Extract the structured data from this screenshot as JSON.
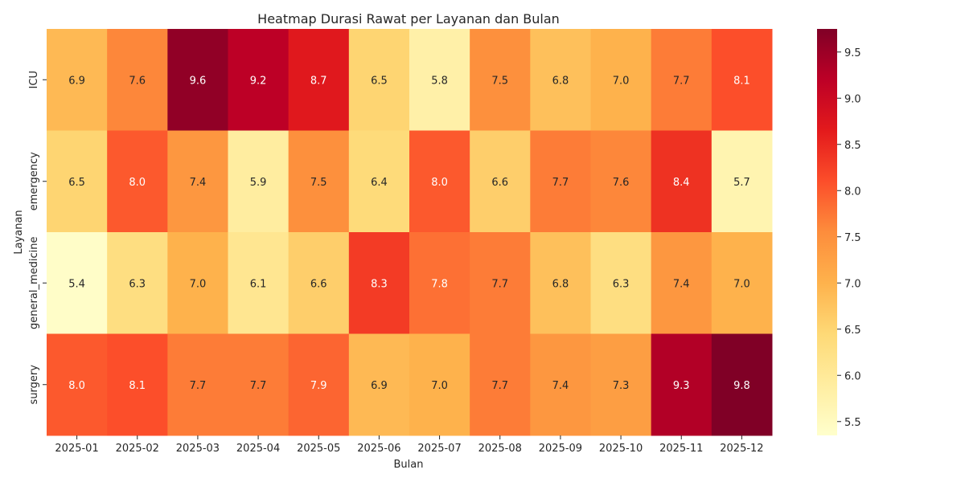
{
  "chart_data": {
    "type": "heatmap",
    "title": "Heatmap Durasi Rawat per Layanan dan Bulan",
    "xlabel": "Bulan",
    "ylabel": "Layanan",
    "x_categories": [
      "2025-01",
      "2025-02",
      "2025-03",
      "2025-04",
      "2025-05",
      "2025-06",
      "2025-07",
      "2025-08",
      "2025-09",
      "2025-10",
      "2025-11",
      "2025-12"
    ],
    "y_categories": [
      "ICU",
      "emergency",
      "general_medicine",
      "surgery"
    ],
    "values": [
      [
        6.9,
        7.6,
        9.6,
        9.2,
        8.7,
        6.5,
        5.8,
        7.5,
        6.8,
        7.0,
        7.7,
        8.1
      ],
      [
        6.5,
        8.0,
        7.4,
        5.9,
        7.5,
        6.4,
        8.0,
        6.6,
        7.7,
        7.6,
        8.4,
        5.7
      ],
      [
        5.4,
        6.3,
        7.0,
        6.1,
        6.6,
        8.3,
        7.8,
        7.7,
        6.8,
        6.3,
        7.4,
        7.0
      ],
      [
        8.0,
        8.1,
        7.7,
        7.7,
        7.9,
        6.9,
        7.0,
        7.7,
        7.4,
        7.3,
        9.3,
        9.8
      ]
    ],
    "color_scale": {
      "name": "YlOrRd",
      "range": [
        5.35,
        9.75
      ],
      "ticks": [
        5.5,
        6.0,
        6.5,
        7.0,
        7.5,
        8.0,
        8.5,
        9.0,
        9.5
      ],
      "tick_labels": [
        "5.5",
        "6.0",
        "6.5",
        "7.0",
        "7.5",
        "8.0",
        "8.5",
        "9.0",
        "9.5"
      ]
    },
    "annotations_shown": true,
    "grid": false
  }
}
